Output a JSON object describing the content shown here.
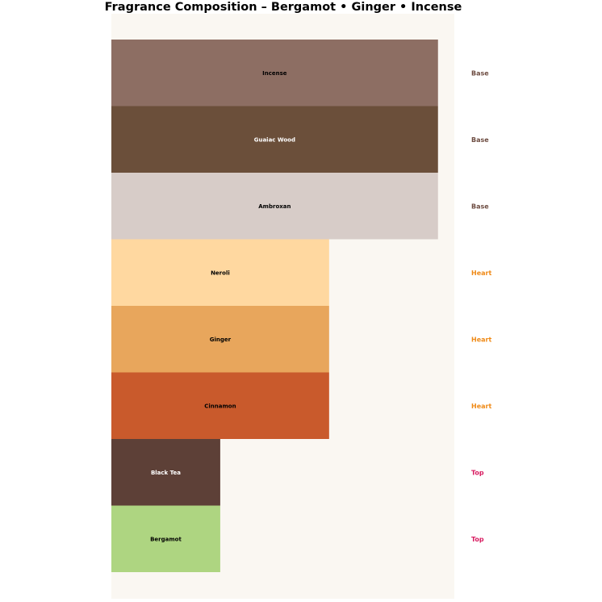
{
  "chart_data": {
    "type": "bar",
    "orientation": "horizontal",
    "title": "Fragrance Composition – Bergamot • Ginger • Incense",
    "xlabel": "",
    "ylabel": "",
    "xlim": [
      0,
      3.15
    ],
    "grid": false,
    "background": "#faf7f2",
    "bars": [
      {
        "name": "Incense",
        "value": 3,
        "tier": "Base",
        "color": "#8d6e63",
        "text_color": "#000000"
      },
      {
        "name": "Guaiac Wood",
        "value": 3,
        "tier": "Base",
        "color": "#6b4f3a",
        "text_color": "#ffffff"
      },
      {
        "name": "Ambroxan",
        "value": 3,
        "tier": "Base",
        "color": "#d7ccc8",
        "text_color": "#000000"
      },
      {
        "name": "Neroli",
        "value": 2,
        "tier": "Heart",
        "color": "#ffd8a0",
        "text_color": "#000000"
      },
      {
        "name": "Ginger",
        "value": 2,
        "tier": "Heart",
        "color": "#e8a65c",
        "text_color": "#000000"
      },
      {
        "name": "Cinnamon",
        "value": 2,
        "tier": "Heart",
        "color": "#c95a2c",
        "text_color": "#000000"
      },
      {
        "name": "Black Tea",
        "value": 1,
        "tier": "Top",
        "color": "#5d4037",
        "text_color": "#ffffff"
      },
      {
        "name": "Bergamot",
        "value": 1,
        "tier": "Top",
        "color": "#aed581",
        "text_color": "#000000"
      }
    ],
    "tier_colors": {
      "Base": "#6d4c41",
      "Heart": "#ef8a17",
      "Top": "#d81b60"
    }
  }
}
